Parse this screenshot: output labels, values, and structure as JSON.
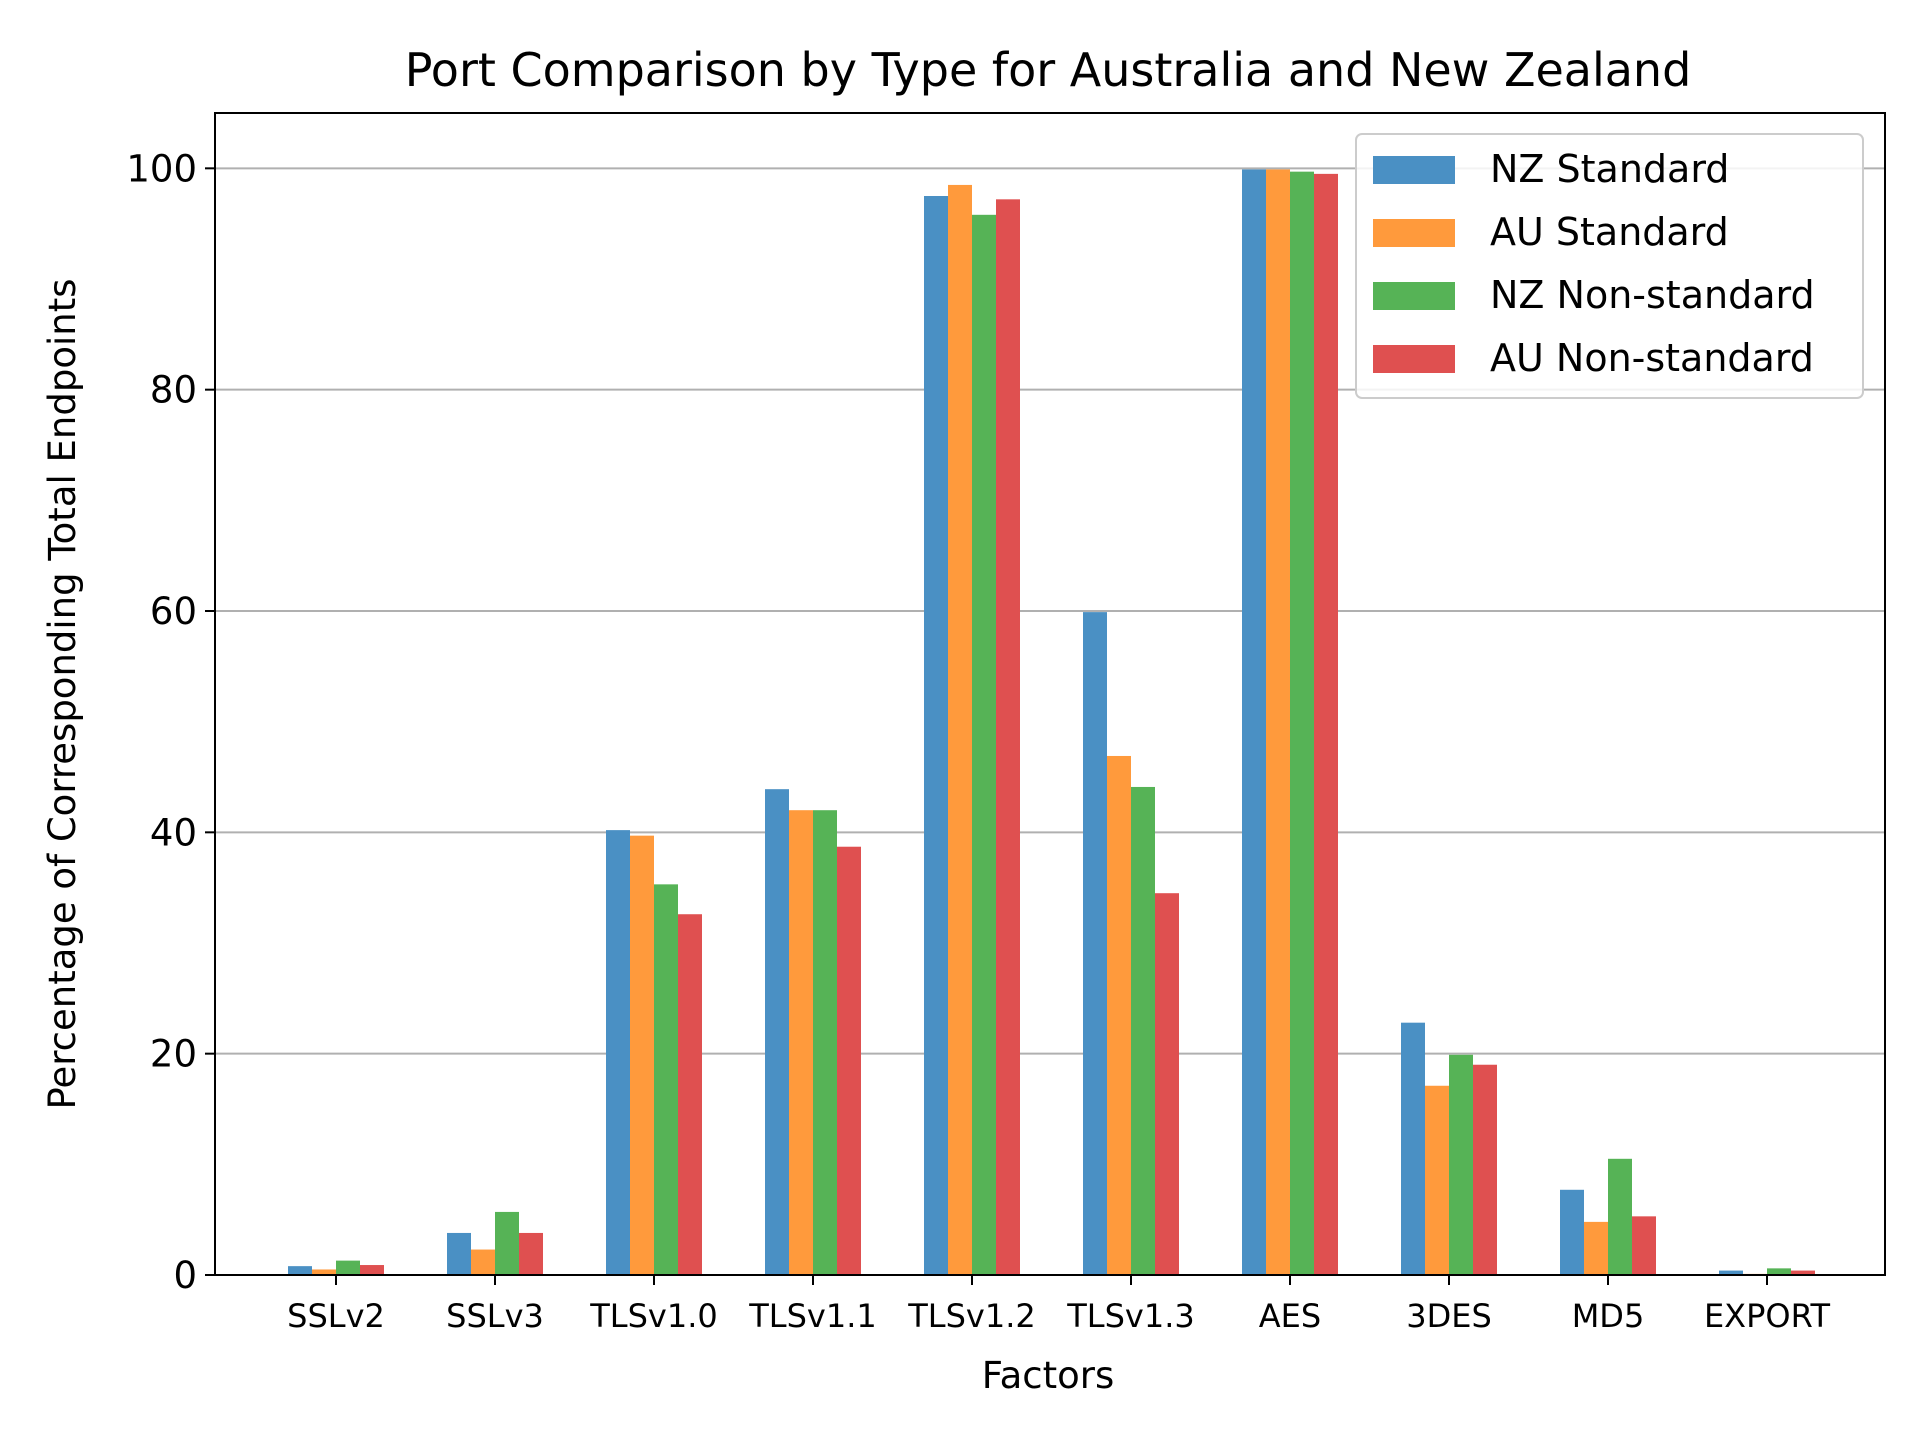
{
  "chart_data": {
    "type": "bar",
    "title": "Port Comparison by Type for Australia and New Zealand",
    "xlabel": "Factors",
    "ylabel": "Percentage of Corresponding Total Endpoints",
    "categories": [
      "SSLv2",
      "SSLv3",
      "TLSv1.0",
      "TLSv1.1",
      "TLSv1.2",
      "TLSv1.3",
      "AES",
      "3DES",
      "MD5",
      "EXPORT"
    ],
    "series": [
      {
        "name": "NZ Standard",
        "color": "#4a90c4",
        "values": [
          0.8,
          3.8,
          40.2,
          43.9,
          97.5,
          59.9,
          99.9,
          22.8,
          7.7,
          0.4
        ]
      },
      {
        "name": "AU Standard",
        "color": "#ff9a3c",
        "values": [
          0.5,
          2.3,
          39.7,
          42.0,
          98.5,
          46.9,
          99.9,
          17.1,
          4.8,
          0.1
        ]
      },
      {
        "name": "NZ Non-standard",
        "color": "#56b356",
        "values": [
          1.3,
          5.7,
          35.3,
          42.0,
          95.8,
          44.1,
          99.7,
          19.9,
          10.5,
          0.6
        ]
      },
      {
        "name": "AU Non-standard",
        "color": "#df5050",
        "values": [
          0.9,
          3.8,
          32.6,
          38.7,
          97.2,
          34.5,
          99.5,
          19.0,
          5.3,
          0.4
        ]
      }
    ],
    "ylim": [
      0,
      105
    ],
    "yticks": [
      0,
      20,
      40,
      60,
      80,
      100
    ],
    "grid": "horizontal",
    "legend": "top-right"
  }
}
